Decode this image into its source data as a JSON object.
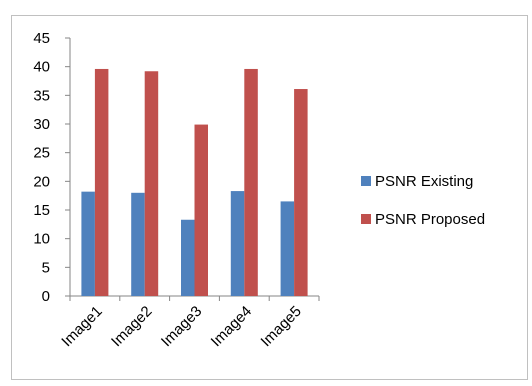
{
  "chart_data": {
    "type": "bar",
    "categories": [
      "Image1",
      "Image2",
      "Image3",
      "Image4",
      "Image5"
    ],
    "series": [
      {
        "name": "PSNR Existing",
        "color": "#4F81BD",
        "values": [
          18.2,
          18.0,
          13.3,
          18.3,
          16.5
        ]
      },
      {
        "name": "PSNR Proposed",
        "color": "#C0504D",
        "values": [
          39.6,
          39.2,
          29.9,
          39.6,
          36.1
        ]
      }
    ],
    "title": "",
    "xlabel": "",
    "ylabel": "",
    "ylim": [
      0,
      45
    ],
    "yticks": [
      0,
      5,
      10,
      15,
      20,
      25,
      30,
      35,
      40,
      45
    ],
    "grid": false,
    "legend_position": "right"
  }
}
